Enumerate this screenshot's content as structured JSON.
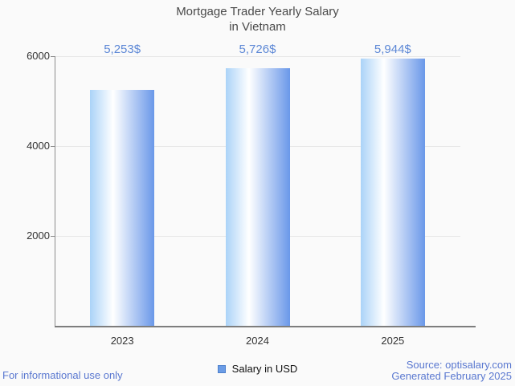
{
  "page": {
    "background": "#fafafa"
  },
  "chart_data": {
    "type": "bar",
    "title": "Mortgage Trader Yearly Salary",
    "subtitle": "in Vietnam",
    "categories": [
      "2023",
      "2024",
      "2025"
    ],
    "values": [
      5253,
      5726,
      5944
    ],
    "value_labels": [
      "5,253$",
      "5,726$",
      "5,944$"
    ],
    "series": [
      {
        "name": "Salary in USD",
        "values": [
          5253,
          5726,
          5944
        ]
      }
    ],
    "xlabel": "",
    "ylabel": "",
    "ylim": [
      0,
      6000
    ],
    "yticks": [
      2000,
      4000,
      6000
    ],
    "grid": "horizontal-on",
    "legend_position": "bottom"
  },
  "legend": {
    "label": "Salary in USD",
    "swatch_fill": "#6b9ce6",
    "swatch_border": "#4d80cc"
  },
  "footer": {
    "left_note": "For informational use only",
    "source": "Source: optisalary.com",
    "generated": "Generated February 2025"
  },
  "colors": {
    "title_text": "#4a4a4a",
    "axis_text": "#333333",
    "value_label": "#5d88d6",
    "footer_text": "#5a78d0",
    "gridline": "#e7e7e7",
    "axis_line": "#7d7d7d",
    "bar_gradient_left": "#abd3f8",
    "bar_gradient_mid": "#ffffff",
    "bar_gradient_right": "#6a98e9"
  }
}
